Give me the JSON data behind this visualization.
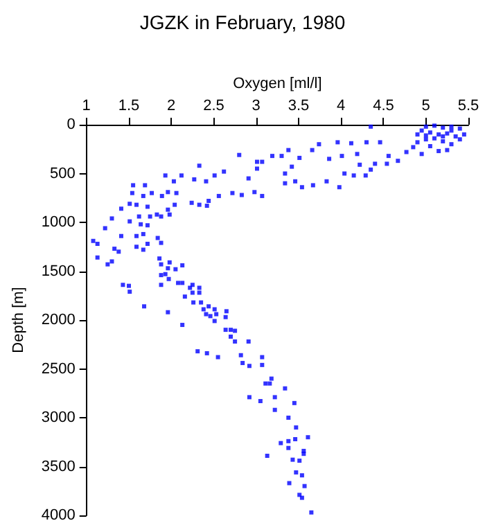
{
  "chart_data": {
    "type": "scatter",
    "title": "JGZK in February, 1980",
    "xlabel": "Oxygen [ml/l]",
    "ylabel": "Depth [m]",
    "xlim": [
      1,
      5.5
    ],
    "xticks": [
      1,
      1.5,
      2,
      2.5,
      3,
      3.5,
      4,
      4.5,
      5,
      5.5
    ],
    "ylim": [
      4000,
      0
    ],
    "yticks": [
      0,
      500,
      1000,
      1500,
      2000,
      2500,
      3000,
      3500,
      4000
    ],
    "grid": false,
    "marker": "square",
    "series": [
      {
        "color": "#0000ff",
        "x": [
          4.35,
          5.0,
          5.1,
          5.2,
          5.3,
          5.4,
          4.95,
          5.05,
          5.15,
          5.25,
          5.35,
          5.0,
          5.1,
          5.2,
          5.3,
          4.9,
          5.4,
          5.25,
          5.05,
          4.85,
          5.15,
          4.95,
          5.3,
          5.45,
          5.2,
          5.0,
          4.9,
          3.96,
          4.12,
          3.74,
          3.66,
          3.38,
          3.42,
          3.19,
          3.01,
          2.8,
          2.62,
          2.51,
          2.33,
          2.27,
          2.41,
          2.91,
          3.01,
          3.07,
          3.3,
          3.51,
          3.86,
          4.01,
          4.19,
          4.3,
          4.46,
          4.56,
          4.67,
          4.77,
          4.22,
          4.35,
          4.54,
          4.4,
          4.04,
          4.15,
          4.29,
          3.98,
          3.83,
          3.67,
          3.46,
          3.34,
          3.54,
          3.34,
          3.07,
          2.98,
          2.83,
          2.72,
          2.56,
          2.44,
          2.33,
          2.24,
          2.42,
          2.12,
          2.03,
          1.93,
          1.96,
          2.06,
          1.89,
          2.04,
          1.96,
          1.77,
          1.55,
          1.69,
          1.54,
          1.67,
          1.51,
          1.72,
          1.59,
          1.41,
          1.83,
          1.75,
          1.62,
          1.51,
          1.64,
          1.72,
          1.3,
          1.22,
          1.59,
          1.67,
          1.41,
          1.08,
          1.13,
          1.88,
          1.98,
          1.13,
          1.25,
          1.3,
          1.33,
          1.38,
          1.59,
          1.67,
          1.72,
          1.84,
          1.88,
          1.43,
          1.5,
          1.51,
          1.68,
          1.86,
          1.88,
          1.96,
          1.98,
          2.05,
          2.13,
          1.88,
          1.93,
          1.97,
          1.88,
          2.08,
          2.13,
          2.22,
          2.25,
          2.25,
          2.33,
          2.33,
          2.16,
          2.26,
          2.35,
          2.44,
          2.38,
          2.41,
          2.46,
          2.51,
          2.53,
          2.51,
          2.64,
          2.65,
          1.96,
          2.13,
          2.64,
          2.7,
          2.75,
          2.7,
          2.75,
          2.91,
          2.31,
          2.42,
          2.55,
          2.82,
          2.84,
          2.92,
          3.07,
          3.07,
          3.18,
          3.11,
          3.16,
          3.34,
          2.92,
          3.05,
          3.22,
          3.45,
          3.22,
          3.38,
          3.47,
          3.61,
          3.46,
          3.38,
          3.29,
          3.38,
          3.56,
          3.56,
          3.13,
          3.43,
          3.51,
          3.47,
          3.54,
          3.39,
          3.57,
          3.51,
          3.54,
          3.65
        ],
        "values": [
          20,
          20,
          10,
          30,
          20,
          40,
          60,
          80,
          100,
          90,
          120,
          150,
          140,
          170,
          200,
          180,
          150,
          260,
          220,
          230,
          270,
          300,
          60,
          100,
          120,
          110,
          100,
          180,
          190,
          200,
          260,
          260,
          430,
          320,
          380,
          310,
          480,
          520,
          420,
          560,
          580,
          550,
          450,
          380,
          320,
          340,
          350,
          320,
          300,
          180,
          180,
          320,
          370,
          280,
          410,
          460,
          400,
          400,
          500,
          520,
          520,
          640,
          580,
          620,
          580,
          600,
          640,
          500,
          730,
          690,
          720,
          700,
          730,
          780,
          820,
          800,
          830,
          520,
          580,
          520,
          690,
          700,
          730,
          820,
          870,
          700,
          620,
          620,
          700,
          730,
          810,
          840,
          820,
          860,
          920,
          940,
          940,
          990,
          1020,
          1030,
          960,
          1060,
          1140,
          1120,
          1140,
          1190,
          1220,
          940,
          920,
          1360,
          1430,
          1400,
          1270,
          1300,
          1250,
          1280,
          1220,
          1160,
          1210,
          1640,
          1650,
          1710,
          1860,
          1370,
          1430,
          1470,
          1410,
          1480,
          1440,
          1540,
          1530,
          1580,
          1640,
          1620,
          1620,
          1670,
          1640,
          1720,
          1670,
          1720,
          1760,
          1820,
          1820,
          1860,
          1890,
          1940,
          1960,
          1890,
          1940,
          2010,
          1970,
          1910,
          1920,
          2050,
          2100,
          2100,
          2110,
          2170,
          2220,
          2220,
          2320,
          2340,
          2380,
          2360,
          2440,
          2470,
          2380,
          2460,
          2600,
          2650,
          2650,
          2700,
          2790,
          2830,
          2790,
          2850,
          2920,
          3000,
          3100,
          3200,
          3220,
          3240,
          3260,
          3310,
          3340,
          3370,
          3390,
          3430,
          3440,
          3560,
          3590,
          3670,
          3700,
          3790,
          3820,
          3970
        ]
      }
    ]
  }
}
